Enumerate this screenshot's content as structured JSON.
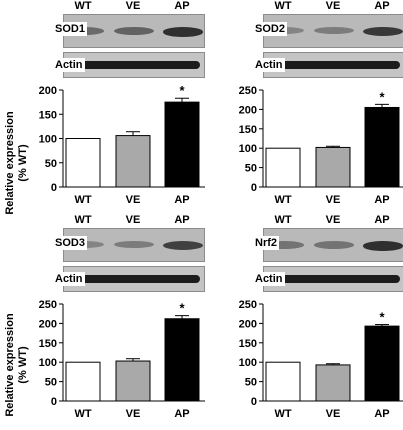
{
  "figure": {
    "ylabel_line1": "Relative expression",
    "ylabel_line2": "(% WT)"
  },
  "chart_data": [
    {
      "type": "bar",
      "protein": "SOD1",
      "loading_control": "Actin",
      "categories": [
        "WT",
        "VE",
        "AP"
      ],
      "values": [
        100,
        106,
        175
      ],
      "errors": [
        0,
        8,
        8
      ],
      "significance": [
        "",
        "",
        "*"
      ],
      "bar_colors": [
        "#ffffff",
        "#a9a9a9",
        "#000000"
      ],
      "ylim": [
        0,
        200
      ],
      "yticks": [
        0,
        50,
        100,
        150,
        200
      ],
      "band_intensity": [
        0.55,
        0.6,
        0.9
      ]
    },
    {
      "type": "bar",
      "protein": "SOD2",
      "loading_control": "Actin",
      "categories": [
        "WT",
        "VE",
        "AP"
      ],
      "values": [
        100,
        102,
        205
      ],
      "errors": [
        0,
        3,
        8
      ],
      "significance": [
        "",
        "",
        "*"
      ],
      "bar_colors": [
        "#ffffff",
        "#a9a9a9",
        "#000000"
      ],
      "ylim": [
        0,
        250
      ],
      "yticks": [
        0,
        50,
        100,
        150,
        200,
        250
      ],
      "band_intensity": [
        0.4,
        0.45,
        0.85
      ]
    },
    {
      "type": "bar",
      "protein": "SOD3",
      "loading_control": "Actin",
      "categories": [
        "WT",
        "VE",
        "AP"
      ],
      "values": [
        100,
        103,
        212
      ],
      "errors": [
        0,
        6,
        8
      ],
      "significance": [
        "",
        "",
        "*"
      ],
      "bar_colors": [
        "#ffffff",
        "#a9a9a9",
        "#000000"
      ],
      "ylim": [
        0,
        250
      ],
      "yticks": [
        0,
        50,
        100,
        150,
        200,
        250
      ],
      "band_intensity": [
        0.4,
        0.45,
        0.8
      ]
    },
    {
      "type": "bar",
      "protein": "Nrf2",
      "loading_control": "Actin",
      "categories": [
        "WT",
        "VE",
        "AP"
      ],
      "values": [
        100,
        93,
        193
      ],
      "errors": [
        0,
        3,
        4
      ],
      "significance": [
        "",
        "",
        "*"
      ],
      "bar_colors": [
        "#ffffff",
        "#a9a9a9",
        "#000000"
      ],
      "ylim": [
        0,
        250
      ],
      "yticks": [
        0,
        50,
        100,
        150,
        200,
        250
      ],
      "band_intensity": [
        0.5,
        0.5,
        0.9
      ]
    }
  ]
}
